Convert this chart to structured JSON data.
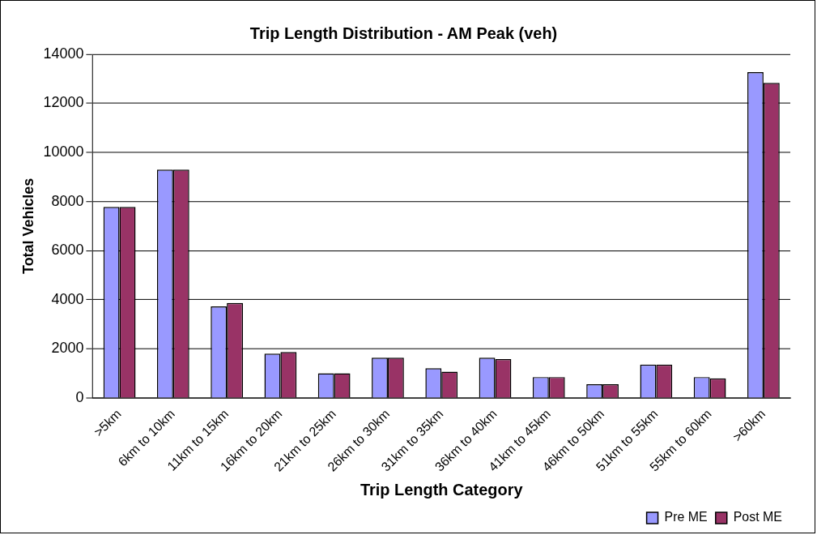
{
  "chart_data": {
    "type": "bar",
    "title": "Trip Length Distribution - AM Peak (veh)",
    "xlabel": "Trip Length Category",
    "ylabel": "Total Vehicles",
    "categories": [
      ">5km",
      "6km to 10km",
      "11km to 15km",
      "16km to 20km",
      "21km to 25km",
      "26km to 30km",
      "31km to 35km",
      "36km to 40km",
      "41km to 45km",
      "46km to 50km",
      "51km to 55km",
      "55km to 60km",
      ">60km"
    ],
    "series": [
      {
        "name": "Pre ME",
        "color": "#9999ff",
        "values": [
          7780,
          9300,
          3730,
          1800,
          1000,
          1640,
          1210,
          1640,
          850,
          560,
          1360,
          850,
          13270
        ]
      },
      {
        "name": "Post ME",
        "color": "#993366",
        "values": [
          7780,
          9300,
          3870,
          1870,
          1000,
          1640,
          1070,
          1580,
          850,
          560,
          1360,
          800,
          12830
        ]
      }
    ],
    "ylim": [
      0,
      14000
    ],
    "yticks": [
      0,
      2000,
      4000,
      6000,
      8000,
      10000,
      12000,
      14000
    ],
    "grid": "y",
    "legend": "bottom right"
  }
}
